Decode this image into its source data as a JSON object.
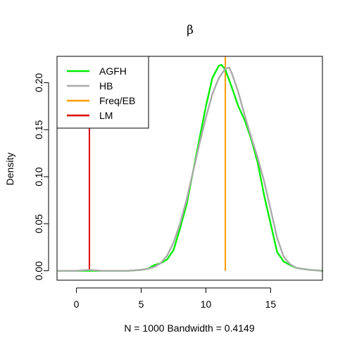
{
  "chart_data": {
    "type": "line",
    "title": "β",
    "xlabel": "N = 1000   Bandwidth = 0.4149",
    "ylabel": "Density",
    "xlim": [
      -1.5,
      19
    ],
    "ylim": [
      -0.01,
      0.228
    ],
    "x_ticks": [
      0,
      5,
      10,
      15
    ],
    "y_ticks": [
      0.0,
      0.05,
      0.1,
      0.15,
      0.2
    ],
    "x_tick_labels": [
      "0",
      "5",
      "10",
      "15"
    ],
    "y_tick_labels": [
      "0.00",
      "0.05",
      "0.10",
      "0.15",
      "0.20"
    ],
    "grid": false,
    "legend": {
      "position": "top-left",
      "entries": [
        {
          "label": "AGFH",
          "color": "#00ee00"
        },
        {
          "label": "HB",
          "color": "#aaaaaa"
        },
        {
          "label": "Freq/EB",
          "color": "#ff9900"
        },
        {
          "label": "LM",
          "color": "#dd0000"
        }
      ]
    },
    "series": [
      {
        "name": "AGFH",
        "color": "#00ee00",
        "x": [
          -1.4,
          0,
          1,
          2,
          3,
          4,
          5,
          5.5,
          6,
          6.5,
          7,
          7.5,
          8,
          8.5,
          9,
          9.5,
          10,
          10.5,
          11,
          11.2,
          11.5,
          12,
          12.5,
          13,
          13.5,
          14,
          14.5,
          15,
          15.5,
          16,
          16.5,
          17,
          18,
          19
        ],
        "y": [
          0.0,
          0.0,
          0.0,
          0.0,
          0.0,
          0.0,
          0.001,
          0.002,
          0.006,
          0.008,
          0.012,
          0.022,
          0.045,
          0.07,
          0.105,
          0.14,
          0.175,
          0.205,
          0.218,
          0.219,
          0.214,
          0.195,
          0.175,
          0.16,
          0.14,
          0.115,
          0.08,
          0.05,
          0.02,
          0.01,
          0.006,
          0.003,
          0.001,
          0.0
        ]
      },
      {
        "name": "HB",
        "color": "#aaaaaa",
        "x": [
          -1.4,
          0,
          1,
          2,
          3,
          4,
          5,
          5.5,
          6,
          6.5,
          7,
          7.5,
          8,
          8.5,
          9,
          9.5,
          10,
          10.5,
          11,
          11.5,
          11.8,
          12,
          12.5,
          13,
          13.5,
          14,
          14.5,
          15,
          15.5,
          16,
          16.5,
          17,
          18,
          19
        ],
        "y": [
          0.0,
          0.0,
          0.001,
          0.0,
          0.0,
          0.0,
          0.001,
          0.002,
          0.004,
          0.008,
          0.016,
          0.03,
          0.05,
          0.075,
          0.105,
          0.135,
          0.163,
          0.188,
          0.205,
          0.215,
          0.216,
          0.21,
          0.19,
          0.165,
          0.142,
          0.12,
          0.095,
          0.065,
          0.035,
          0.015,
          0.007,
          0.003,
          0.001,
          0.0
        ]
      }
    ],
    "vlines": [
      {
        "name": "Freq/EB",
        "x": 11.5,
        "y_from": 0.0,
        "y_to": 0.228,
        "color": "#ff9900"
      },
      {
        "name": "LM",
        "x": 1.0,
        "y_from": 0.0,
        "y_to": 0.155,
        "color": "#dd0000"
      }
    ]
  }
}
